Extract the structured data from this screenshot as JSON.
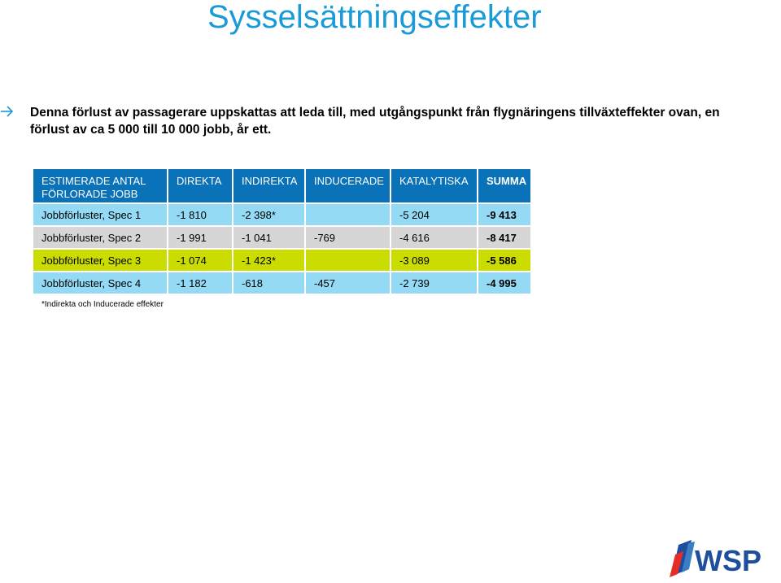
{
  "title": "Sysselsättningseffekter",
  "bullet": {
    "icon": "arrow-right-icon",
    "text": "Denna förlust av passagerare uppskattas att leda till, med utgångspunkt från flygnäringens tillväxteffekter ovan, en förlust av ca 5 000 till 10 000 jobb, år ett."
  },
  "table": {
    "headers": [
      "ESTIMERADE ANTAL FÖRLORADE JOBB",
      "DIREKTA",
      "INDIREKTA",
      "INDUCERADE",
      "KATALYTISKA",
      "SUMMA"
    ],
    "rows": [
      [
        "Jobbförluster, Spec 1",
        "-1 810",
        "-2 398*",
        "",
        "-5 204",
        "-9 413"
      ],
      [
        "Jobbförluster, Spec 2",
        "-1 991",
        "-1 041",
        "-769",
        "-4 616",
        "-8 417"
      ],
      [
        "Jobbförluster, Spec 3",
        "-1 074",
        "-1 423*",
        "",
        "-3 089",
        "-5 586"
      ],
      [
        "Jobbförluster, Spec 4",
        "-1 182",
        "-618",
        "-457",
        "-2 739",
        "-4 995"
      ]
    ]
  },
  "footnote": "*Indirekta och Inducerade effekter",
  "logo": {
    "name": "wsp-logo",
    "text": "WSP"
  },
  "colors": {
    "title": "#1a9ad6",
    "header_bg": "#0a72b8",
    "row_blue": "#94daf4",
    "row_grey": "#d6d6d6",
    "row_green": "#cadc00",
    "logo_blue": "#1f4f9c",
    "logo_red": "#e52d27"
  }
}
